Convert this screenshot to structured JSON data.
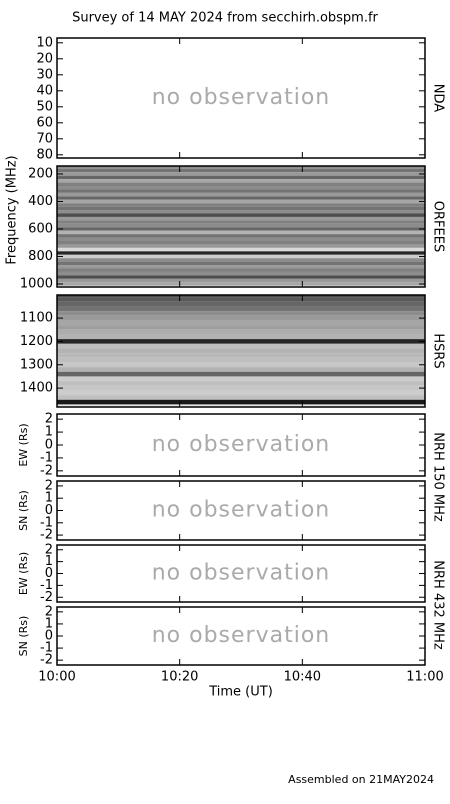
{
  "header": {
    "title": "Survey of 14 MAY 2024 from secchirh.obspm.fr"
  },
  "footer": "Assembled on 21MAY2024",
  "frequency_label": "Frequency (MHz)",
  "groups": [
    {
      "label": "NRH 150 MHz",
      "panels": [
        3,
        4
      ]
    },
    {
      "label": "NRH 432 MHz",
      "panels": [
        5,
        6
      ]
    }
  ],
  "time_axis": {
    "xlim": [
      0,
      60
    ],
    "xlabel": "Time (UT)",
    "xticks": [
      {
        "value": 0,
        "label": "10:00"
      },
      {
        "value": 20,
        "label": "10:20"
      },
      {
        "value": 40,
        "label": "10:40"
      },
      {
        "value": 60,
        "label": "11:00"
      }
    ]
  },
  "chart_data": [
    {
      "type": "empty",
      "name": "NDA",
      "annotation": "no observation",
      "ylim": [
        7,
        82
      ],
      "inverted": true,
      "yticks": [
        10,
        20,
        30,
        40,
        50,
        60,
        70,
        80
      ]
    },
    {
      "type": "heatmap",
      "name": "ORFEES",
      "ylim": [
        142,
        1022
      ],
      "inverted": true,
      "yticks": [
        200,
        400,
        600,
        800,
        1000
      ],
      "clim": [
        0,
        100
      ],
      "y": [
        150,
        175,
        200,
        225,
        250,
        275,
        300,
        325,
        350,
        375,
        400,
        425,
        450,
        475,
        500,
        525,
        550,
        575,
        600,
        625,
        650,
        675,
        700,
        725,
        750,
        775,
        800,
        825,
        850,
        875,
        900,
        925,
        950,
        975,
        1000
      ],
      "values": [
        45,
        55,
        40,
        60,
        35,
        50,
        45,
        55,
        40,
        60,
        35,
        50,
        55,
        45,
        70,
        40,
        50,
        45,
        60,
        30,
        55,
        45,
        50,
        40,
        15,
        85,
        20,
        45,
        55,
        40,
        50,
        45,
        70,
        40,
        35
      ]
    },
    {
      "type": "heatmap",
      "name": "HSRS",
      "ylim": [
        1001,
        1481
      ],
      "inverted": true,
      "yticks": [
        1100,
        1200,
        1300,
        1400
      ],
      "clim": [
        0,
        100
      ],
      "y": [
        1000,
        1020,
        1040,
        1060,
        1080,
        1100,
        1120,
        1140,
        1160,
        1180,
        1200,
        1220,
        1240,
        1260,
        1280,
        1300,
        1320,
        1340,
        1360,
        1380,
        1400,
        1420,
        1440,
        1460,
        1480
      ],
      "values": [
        70,
        65,
        60,
        55,
        45,
        40,
        35,
        38,
        32,
        30,
        85,
        25,
        30,
        28,
        25,
        22,
        30,
        60,
        20,
        25,
        22,
        20,
        25,
        90,
        10
      ]
    },
    {
      "type": "empty",
      "ylabel": "EW (Rs)",
      "annotation": "no observation",
      "ylim": [
        -2.4,
        2.4
      ],
      "yticks": [
        2,
        1,
        0,
        -1,
        -2
      ]
    },
    {
      "type": "empty",
      "ylabel": "SN (Rs)",
      "annotation": "no observation",
      "ylim": [
        -2.4,
        2.4
      ],
      "yticks": [
        2,
        1,
        0,
        -1,
        -2
      ]
    },
    {
      "type": "empty",
      "ylabel": "EW (Rs)",
      "annotation": "no observation",
      "ylim": [
        -2.4,
        2.4
      ],
      "yticks": [
        2,
        1,
        0,
        -1,
        -2
      ]
    },
    {
      "type": "empty",
      "ylabel": "SN (Rs)",
      "annotation": "no observation",
      "ylim": [
        -2.4,
        2.4
      ],
      "yticks": [
        2,
        1,
        0,
        -1,
        -2
      ]
    }
  ]
}
